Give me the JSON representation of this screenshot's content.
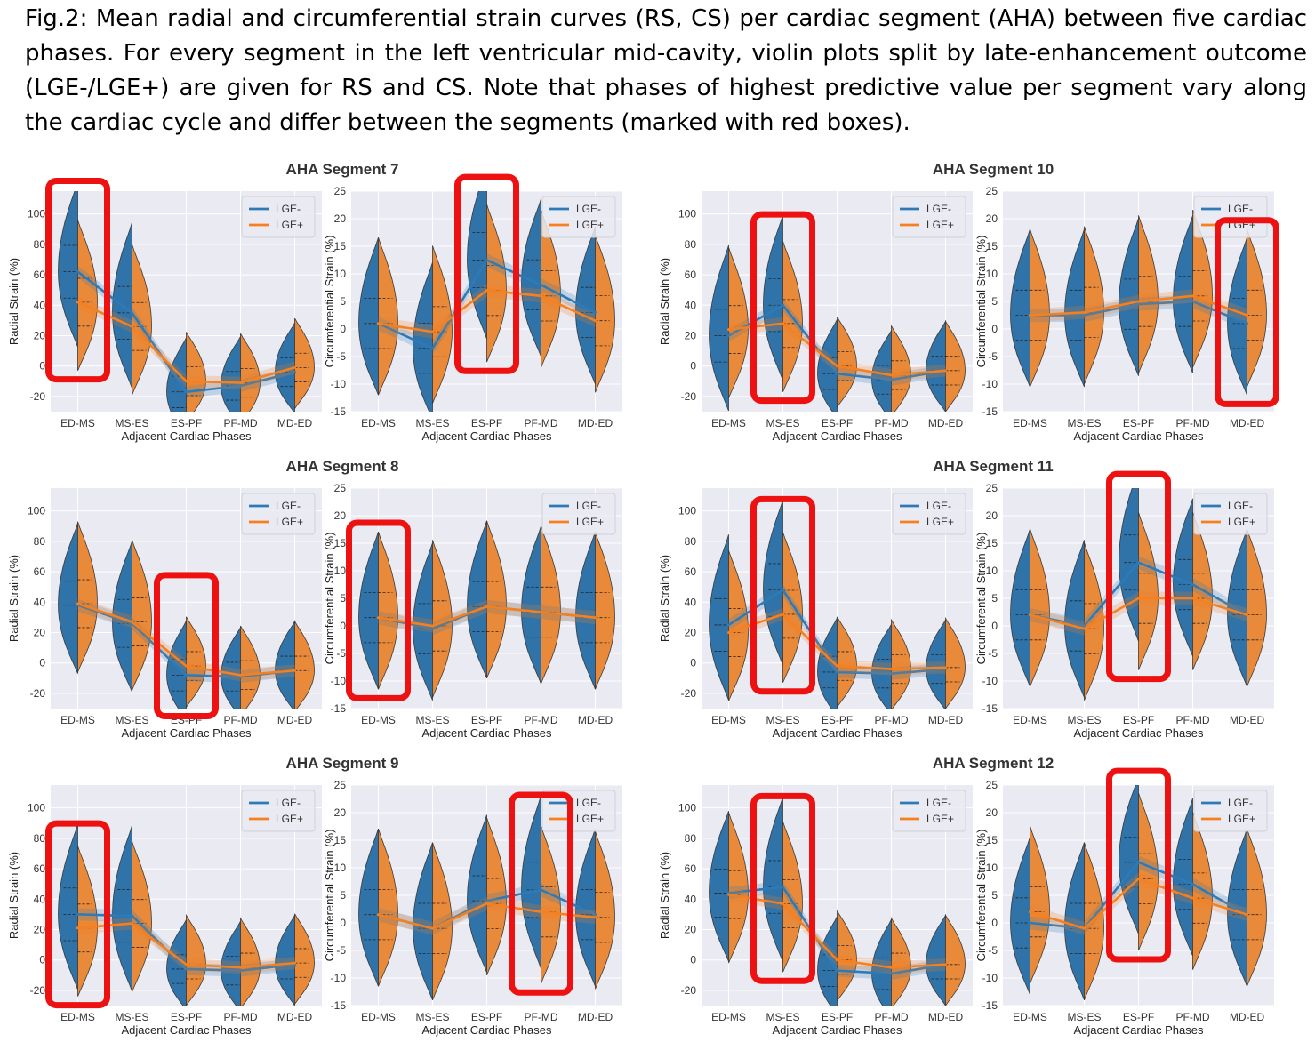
{
  "caption": "Fig.2: Mean radial and circumferential strain curves (RS, CS) per cardiac segment (AHA) between five cardiac phases. For every segment in the left ventricular mid-cavity, violin plots split by late-enhancement outcome (LGE-/LGE+) are given for RS and CS. Note that phases of highest predictive value per segment vary along the cardiac cycle and differ between the segments (marked with red boxes).",
  "colors": {
    "lge_neg": "#2f73a8",
    "lge_pos": "#e88a3a",
    "line_neg": "#2e7ab6",
    "line_pos": "#f5801f",
    "highlight": "#ee1111",
    "panel_bg": "#eaeaf2"
  },
  "chart_data": [
    {
      "segment_title": "AHA Segment 7",
      "type": "violin",
      "metric": "RS",
      "ylabel": "Radial Strain (%)",
      "xlabel": "Adjacent Cardiac Phases",
      "categories": [
        "ED-MS",
        "MS-ES",
        "ES-PF",
        "PF-MD",
        "MD-ED"
      ],
      "ylim": [
        -30,
        115
      ],
      "yticks": [
        -20,
        0,
        20,
        40,
        60,
        80,
        100
      ],
      "legend": {
        "position": "top-right",
        "entries": [
          "LGE-",
          "LGE+"
        ]
      },
      "series": [
        {
          "name": "LGE-",
          "values": [
            62,
            35,
            -17,
            -13,
            -4
          ]
        },
        {
          "name": "LGE+",
          "values": [
            42,
            26,
            -10,
            -11,
            -1
          ]
        }
      ],
      "highlight": [
        "ED-MS"
      ]
    },
    {
      "segment_title": "",
      "type": "violin",
      "metric": "CS",
      "ylabel": "Circumferential Strain (%)",
      "xlabel": "Adjacent Cardiac Phases",
      "categories": [
        "ED-MS",
        "MS-ES",
        "ES-PF",
        "PF-MD",
        "MD-ED"
      ],
      "ylim": [
        -15,
        25
      ],
      "yticks": [
        -15,
        -10,
        -5,
        0,
        5,
        10,
        15,
        20,
        25
      ],
      "legend": {
        "position": "top-right",
        "entries": [
          "LGE-",
          "LGE+"
        ]
      },
      "series": [
        {
          "name": "LGE-",
          "values": [
            1,
            -3.5,
            12.5,
            8,
            3
          ]
        },
        {
          "name": "LGE+",
          "values": [
            1,
            -0.5,
            7,
            6,
            1.5
          ]
        }
      ],
      "highlight": [
        "ES-PF"
      ]
    },
    {
      "segment_title": "AHA Segment 10",
      "type": "violin",
      "metric": "RS",
      "ylabel": "Radial Strain (%)",
      "xlabel": "Adjacent Cardiac Phases",
      "categories": [
        "ED-MS",
        "MS-ES",
        "ES-PF",
        "PF-MD",
        "MD-ED"
      ],
      "ylim": [
        -30,
        115
      ],
      "yticks": [
        -20,
        0,
        20,
        40,
        60,
        80,
        100
      ],
      "legend": {
        "position": "top-right",
        "entries": [
          "LGE-",
          "LGE+"
        ]
      },
      "series": [
        {
          "name": "LGE-",
          "values": [
            20,
            40,
            -5,
            -9,
            -3
          ]
        },
        {
          "name": "LGE+",
          "values": [
            24,
            28,
            0,
            -6,
            -3
          ]
        }
      ],
      "highlight": [
        "MS-ES"
      ]
    },
    {
      "segment_title": "",
      "type": "violin",
      "metric": "CS",
      "ylabel": "Circumferential Strain (%)",
      "xlabel": "Adjacent Cardiac Phases",
      "categories": [
        "ED-MS",
        "MS-ES",
        "ES-PF",
        "PF-MD",
        "MD-ED"
      ],
      "ylim": [
        -15,
        25
      ],
      "yticks": [
        -15,
        -10,
        -5,
        0,
        5,
        10,
        15,
        20,
        25
      ],
      "legend": {
        "position": "top-right",
        "entries": [
          "LGE-",
          "LGE+"
        ]
      },
      "series": [
        {
          "name": "LGE-",
          "values": [
            2.5,
            2.5,
            4.5,
            5,
            1
          ]
        },
        {
          "name": "LGE+",
          "values": [
            2.5,
            3,
            5,
            6,
            2.5
          ]
        }
      ],
      "highlight": [
        "MD-ED"
      ]
    },
    {
      "segment_title": "AHA Segment 8",
      "type": "violin",
      "metric": "RS",
      "ylabel": "Radial Strain (%)",
      "xlabel": "Adjacent Cardiac Phases",
      "categories": [
        "ED-MS",
        "MS-ES",
        "ES-PF",
        "PF-MD",
        "MD-ED"
      ],
      "ylim": [
        -30,
        115
      ],
      "yticks": [
        -20,
        0,
        20,
        40,
        60,
        80,
        100
      ],
      "legend": {
        "position": "top-right",
        "entries": [
          "LGE-",
          "LGE+"
        ]
      },
      "series": [
        {
          "name": "LGE-",
          "values": [
            38,
            26,
            -8,
            -9,
            -5
          ]
        },
        {
          "name": "LGE+",
          "values": [
            39,
            27,
            -2,
            -8,
            -5
          ]
        }
      ],
      "highlight": [
        "ES-PF"
      ]
    },
    {
      "segment_title": "",
      "type": "violin",
      "metric": "CS",
      "ylabel": "Circumferential Strain (%)",
      "xlabel": "Adjacent Cardiac Phases",
      "categories": [
        "ED-MS",
        "MS-ES",
        "ES-PF",
        "PF-MD",
        "MD-ED"
      ],
      "ylim": [
        -15,
        25
      ],
      "yticks": [
        -15,
        -10,
        -5,
        0,
        5,
        10,
        15,
        20,
        25
      ],
      "legend": {
        "position": "top-right",
        "entries": [
          "LGE-",
          "LGE+"
        ]
      },
      "series": [
        {
          "name": "LGE-",
          "values": [
            1.5,
            -0.5,
            3.5,
            2.5,
            1.5
          ]
        },
        {
          "name": "LGE+",
          "values": [
            1.5,
            0,
            3.5,
            2.5,
            1.5
          ]
        }
      ],
      "highlight": [
        "ED-MS"
      ]
    },
    {
      "segment_title": "AHA Segment 11",
      "type": "violin",
      "metric": "RS",
      "ylabel": "Radial Strain (%)",
      "xlabel": "Adjacent Cardiac Phases",
      "categories": [
        "ED-MS",
        "MS-ES",
        "ES-PF",
        "PF-MD",
        "MD-ED"
      ],
      "ylim": [
        -30,
        115
      ],
      "yticks": [
        -20,
        0,
        20,
        40,
        60,
        80,
        100
      ],
      "legend": {
        "position": "top-right",
        "entries": [
          "LGE-",
          "LGE+"
        ]
      },
      "series": [
        {
          "name": "LGE-",
          "values": [
            25,
            48,
            -6,
            -7,
            -4
          ]
        },
        {
          "name": "LGE+",
          "values": [
            20,
            32,
            -2,
            -4,
            -3
          ]
        }
      ],
      "highlight": [
        "MS-ES"
      ]
    },
    {
      "segment_title": "",
      "type": "violin",
      "metric": "CS",
      "ylabel": "Circumferential Strain (%)",
      "xlabel": "Adjacent Cardiac Phases",
      "categories": [
        "ED-MS",
        "MS-ES",
        "ES-PF",
        "PF-MD",
        "MD-ED"
      ],
      "ylim": [
        -15,
        25
      ],
      "yticks": [
        -15,
        -10,
        -5,
        0,
        5,
        10,
        15,
        20,
        25
      ],
      "legend": {
        "position": "top-right",
        "entries": [
          "LGE-",
          "LGE+"
        ]
      },
      "series": [
        {
          "name": "LGE-",
          "values": [
            2,
            0,
            11.5,
            7.5,
            2
          ]
        },
        {
          "name": "LGE+",
          "values": [
            2,
            -0.5,
            5,
            5,
            2
          ]
        }
      ],
      "highlight": [
        "ES-PF"
      ]
    },
    {
      "segment_title": "AHA Segment 9",
      "type": "violin",
      "metric": "RS",
      "ylabel": "Radial Strain (%)",
      "xlabel": "Adjacent Cardiac Phases",
      "categories": [
        "ED-MS",
        "MS-ES",
        "ES-PF",
        "PF-MD",
        "MD-ED"
      ],
      "ylim": [
        -30,
        115
      ],
      "yticks": [
        -20,
        0,
        20,
        40,
        60,
        80,
        100
      ],
      "legend": {
        "position": "top-right",
        "entries": [
          "LGE-",
          "LGE+"
        ]
      },
      "series": [
        {
          "name": "LGE-",
          "values": [
            30,
            29,
            -6,
            -7,
            -3
          ]
        },
        {
          "name": "LGE+",
          "values": [
            21,
            24,
            -3,
            -5,
            -2
          ]
        }
      ],
      "highlight": [
        "ED-MS"
      ]
    },
    {
      "segment_title": "",
      "type": "violin",
      "metric": "CS",
      "ylabel": "Circumferential Strain (%)",
      "xlabel": "Adjacent Cardiac Phases",
      "categories": [
        "ED-MS",
        "MS-ES",
        "ES-PF",
        "PF-MD",
        "MD-ED"
      ],
      "ylim": [
        -15,
        25
      ],
      "yticks": [
        -15,
        -10,
        -5,
        0,
        5,
        10,
        15,
        20,
        25
      ],
      "legend": {
        "position": "top-right",
        "entries": [
          "LGE-",
          "LGE+"
        ]
      },
      "series": [
        {
          "name": "LGE-",
          "values": [
            1.5,
            -1,
            4,
            6,
            1.5
          ]
        },
        {
          "name": "LGE+",
          "values": [
            1.5,
            -1,
            3.5,
            2,
            1
          ]
        }
      ],
      "highlight": [
        "PF-MD"
      ]
    },
    {
      "segment_title": "AHA Segment 12",
      "type": "violin",
      "metric": "RS",
      "ylabel": "Radial Strain (%)",
      "xlabel": "Adjacent Cardiac Phases",
      "categories": [
        "ED-MS",
        "MS-ES",
        "ES-PF",
        "PF-MD",
        "MD-ED"
      ],
      "ylim": [
        -30,
        115
      ],
      "yticks": [
        -20,
        0,
        20,
        40,
        60,
        80,
        100
      ],
      "legend": {
        "position": "top-right",
        "entries": [
          "LGE-",
          "LGE+"
        ]
      },
      "series": [
        {
          "name": "LGE-",
          "values": [
            44,
            48,
            -7,
            -9,
            -3
          ]
        },
        {
          "name": "LGE+",
          "values": [
            43,
            37,
            0,
            -5,
            -3
          ]
        }
      ],
      "highlight": [
        "MS-ES"
      ]
    },
    {
      "segment_title": "",
      "type": "violin",
      "metric": "CS",
      "ylabel": "Circumferential Strain (%)",
      "xlabel": "Adjacent Cardiac Phases",
      "categories": [
        "ED-MS",
        "MS-ES",
        "ES-PF",
        "PF-MD",
        "MD-ED"
      ],
      "ylim": [
        -15,
        25
      ],
      "yticks": [
        -15,
        -10,
        -5,
        0,
        5,
        10,
        15,
        20,
        25
      ],
      "legend": {
        "position": "top-right",
        "entries": [
          "LGE-",
          "LGE+"
        ]
      },
      "series": [
        {
          "name": "LGE-",
          "values": [
            0,
            -1,
            11,
            7,
            1.5
          ]
        },
        {
          "name": "LGE+",
          "values": [
            2,
            -1,
            8,
            4.5,
            1.5
          ]
        }
      ],
      "highlight": [
        "ES-PF"
      ]
    }
  ]
}
